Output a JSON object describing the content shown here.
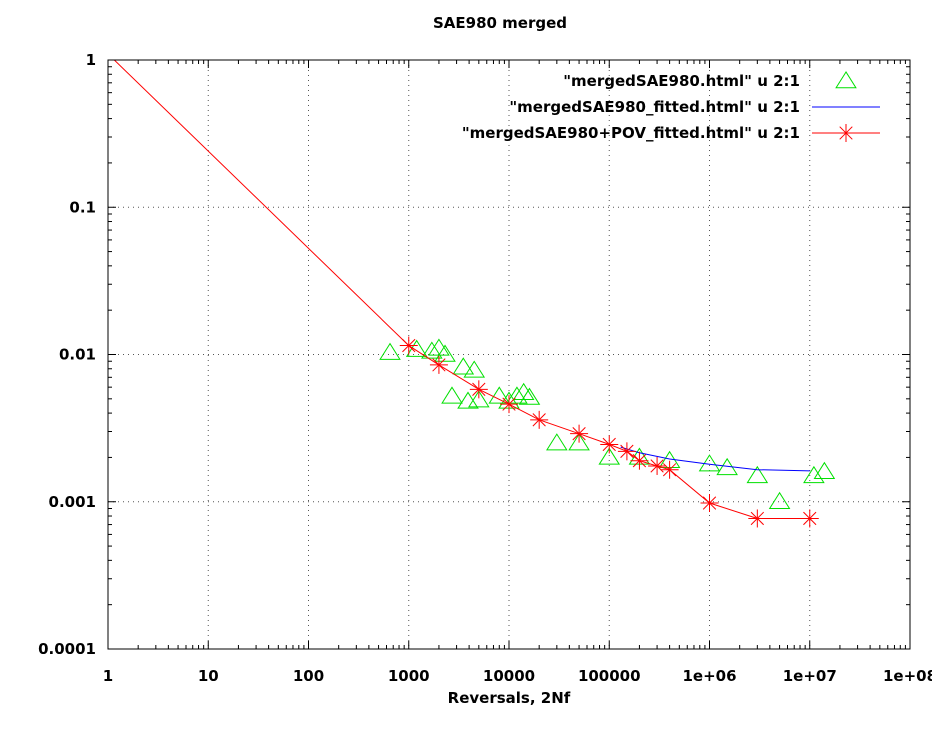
{
  "chart_data": {
    "type": "line",
    "title": "SAE980 merged",
    "xlabel": "Reversals, 2Nf",
    "ylabel": "",
    "x_scale": "log",
    "y_scale": "log",
    "xlim": [
      1,
      100000000
    ],
    "ylim": [
      0.0001,
      1
    ],
    "grid": true,
    "legend_position": "top-right",
    "x_ticks": [
      "1",
      "10",
      "100",
      "1000",
      "10000",
      "100000",
      "1e+06",
      "1e+07",
      "1e+08"
    ],
    "y_ticks": [
      "0.0001",
      "0.001",
      "0.01",
      "0.1",
      "1"
    ],
    "x_tick_values": [
      1,
      10,
      100,
      1000,
      10000,
      100000,
      1000000,
      10000000,
      100000000
    ],
    "y_tick_values": [
      0.0001,
      0.001,
      0.01,
      0.1,
      1
    ],
    "series": [
      {
        "name": "\"mergedSAE980.html\" u 2:1",
        "style": "points",
        "marker": "triangle",
        "color": "#00e000",
        "x": [
          650,
          1200,
          1700,
          2000,
          2300,
          2700,
          3500,
          3900,
          4500,
          5000,
          8000,
          10000,
          12000,
          14000,
          16000,
          30000,
          50000,
          100000,
          200000,
          400000,
          1000000,
          1500000,
          3000000,
          5000000,
          11000000,
          14000000
        ],
        "y": [
          0.0103,
          0.0108,
          0.0105,
          0.011,
          0.01,
          0.0052,
          0.0082,
          0.0048,
          0.0078,
          0.0049,
          0.0052,
          0.0048,
          0.0052,
          0.0055,
          0.0051,
          0.0025,
          0.0025,
          0.002,
          0.002,
          0.0019,
          0.0018,
          0.0017,
          0.0015,
          0.001,
          0.0015,
          0.0016
        ]
      },
      {
        "name": "\"mergedSAE980_fitted.html\" u 2:1",
        "style": "line",
        "color": "#0000ff",
        "x": [
          130000,
          200000,
          400000,
          1000000,
          3000000,
          10000000
        ],
        "y": [
          0.00235,
          0.00215,
          0.00195,
          0.0018,
          0.00165,
          0.00162
        ]
      },
      {
        "name": "\"mergedSAE980+POV_fitted.html\" u 2:1",
        "style": "linespoints",
        "marker": "asterisk",
        "color": "#ff0000",
        "x": [
          1,
          1000,
          2000,
          5000,
          10000,
          20000,
          50000,
          100000,
          150000,
          200000,
          300000,
          400000,
          1000000,
          3000000,
          10000000
        ],
        "y": [
          1.1,
          0.0115,
          0.0085,
          0.0058,
          0.0046,
          0.0036,
          0.0029,
          0.00245,
          0.0022,
          0.0019,
          0.00175,
          0.00165,
          0.00098,
          0.00077,
          0.00077
        ],
        "marker_x": [
          1000,
          2000,
          5000,
          10000,
          20000,
          50000,
          100000,
          150000,
          200000,
          300000,
          400000,
          1000000,
          3000000,
          10000000
        ],
        "marker_y": [
          0.0115,
          0.0085,
          0.0058,
          0.0046,
          0.0036,
          0.0029,
          0.00245,
          0.0022,
          0.0019,
          0.00175,
          0.00165,
          0.00098,
          0.00077,
          0.00077
        ]
      }
    ]
  }
}
